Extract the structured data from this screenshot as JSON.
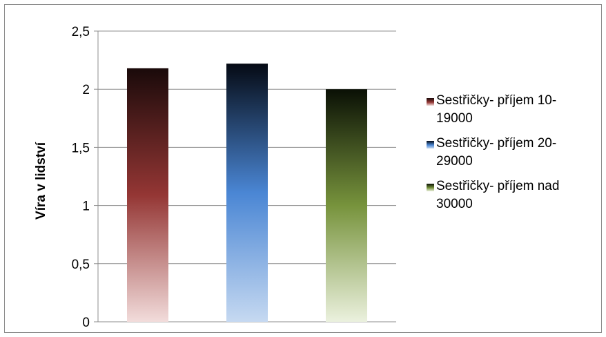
{
  "chart_data": {
    "type": "bar",
    "title": "",
    "xlabel": "",
    "ylabel": "Víra v lidství",
    "ylim": [
      0,
      2.5
    ],
    "yticks": [
      0,
      0.5,
      1,
      1.5,
      2,
      2.5
    ],
    "ytick_labels": [
      "0",
      "0,5",
      "1",
      "1,5",
      "2",
      "2,5"
    ],
    "grid": true,
    "legend_position": "right",
    "series": [
      {
        "name": "Sestřičky- příjem 10-19000",
        "legend_lines": [
          "Sestřičky- příjem 10-",
          "19000"
        ],
        "value": 2.18,
        "color_dark": "#1a0a0a",
        "color_mid": "#943634",
        "color_light": "#f2dcdb"
      },
      {
        "name": "Sestřičky- příjem 20-29000",
        "legend_lines": [
          "Sestřičky- příjem 20-",
          "29000"
        ],
        "value": 2.22,
        "color_dark": "#050a14",
        "color_mid": "#4a86d4",
        "color_light": "#c6d9f1"
      },
      {
        "name": "Sestřičky- příjem nad 30000",
        "legend_lines": [
          "Sestřičky- příjem nad",
          "30000"
        ],
        "value": 2.0,
        "color_dark": "#0a1005",
        "color_mid": "#77933c",
        "color_light": "#ebf1de"
      }
    ]
  }
}
